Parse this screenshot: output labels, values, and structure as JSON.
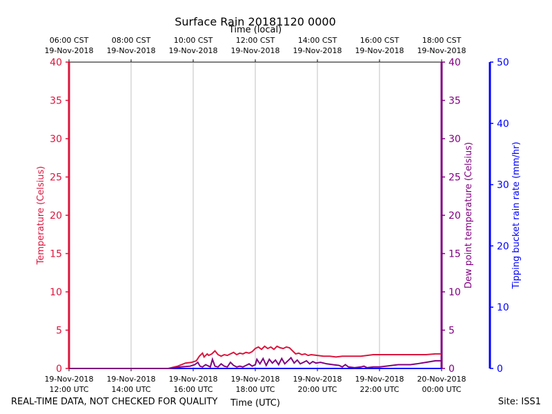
{
  "footer": {
    "disclaimer": "REAL-TIME DATA, NOT CHECKED FOR QUALITY",
    "site": "Site: ISS1"
  },
  "chart_data": {
    "type": "line",
    "title": "Surface Rain 20181120 0000",
    "top_axis_label": "Time (local)",
    "xlabel": "Time (UTC)",
    "xlim_hours": [
      12,
      24
    ],
    "top_ticks": [
      {
        "h": 12,
        "time": "06:00 CST",
        "date": "19-Nov-2018"
      },
      {
        "h": 14,
        "time": "08:00 CST",
        "date": "19-Nov-2018"
      },
      {
        "h": 16,
        "time": "10:00 CST",
        "date": "19-Nov-2018"
      },
      {
        "h": 18,
        "time": "12:00 CST",
        "date": "19-Nov-2018"
      },
      {
        "h": 20,
        "time": "14:00 CST",
        "date": "19-Nov-2018"
      },
      {
        "h": 22,
        "time": "16:00 CST",
        "date": "19-Nov-2018"
      },
      {
        "h": 24,
        "time": "18:00 CST",
        "date": "19-Nov-2018"
      }
    ],
    "bottom_ticks": [
      {
        "h": 12,
        "date": "19-Nov-2018",
        "time": "12:00 UTC"
      },
      {
        "h": 14,
        "date": "19-Nov-2018",
        "time": "14:00 UTC"
      },
      {
        "h": 16,
        "date": "19-Nov-2018",
        "time": "16:00 UTC"
      },
      {
        "h": 18,
        "date": "19-Nov-2018",
        "time": "18:00 UTC"
      },
      {
        "h": 20,
        "date": "19-Nov-2018",
        "time": "20:00 UTC"
      },
      {
        "h": 22,
        "date": "19-Nov-2018",
        "time": "22:00 UTC"
      },
      {
        "h": 24,
        "date": "20-Nov-2018",
        "time": "00:00 UTC"
      }
    ],
    "gridlines_hours": [
      14,
      16,
      18,
      20,
      22
    ],
    "axes": {
      "left": {
        "label": "Temperature (Celsius)",
        "ylim": [
          0,
          40
        ],
        "ticks": [
          0,
          5,
          10,
          15,
          20,
          25,
          30,
          35,
          40
        ],
        "color": "#dc143c"
      },
      "right1": {
        "label": "Dew point temperature (Celsius)",
        "ylim": [
          0,
          40
        ],
        "ticks": [
          0,
          5,
          10,
          15,
          20,
          25,
          30,
          35,
          40
        ],
        "color": "#800080"
      },
      "right2": {
        "label": "Tipping bucket rain rate (mm/hr)",
        "ylim": [
          0,
          50
        ],
        "ticks": [
          0,
          10,
          20,
          30,
          40,
          50
        ],
        "color": "#0000ff"
      }
    },
    "series": [
      {
        "name": "Temperature",
        "color": "#dc143c",
        "axis": "left",
        "x": [
          12.0,
          15.2,
          15.5,
          15.75,
          15.95,
          16.1,
          16.2,
          16.3,
          16.35,
          16.45,
          16.5,
          16.6,
          16.7,
          16.8,
          16.9,
          17.0,
          17.1,
          17.2,
          17.3,
          17.4,
          17.5,
          17.6,
          17.7,
          17.8,
          17.9,
          18.0,
          18.1,
          18.2,
          18.3,
          18.4,
          18.5,
          18.6,
          18.7,
          18.8,
          18.9,
          19.0,
          19.1,
          19.2,
          19.3,
          19.4,
          19.5,
          19.6,
          19.7,
          19.8,
          20.0,
          20.2,
          20.4,
          20.6,
          20.8,
          21.0,
          21.2,
          21.4,
          21.6,
          21.8,
          22.0,
          22.5,
          23.0,
          23.5,
          23.8,
          24.0
        ],
        "y": [
          0.0,
          0.0,
          0.3,
          0.7,
          0.8,
          1.0,
          1.6,
          2.0,
          1.5,
          1.9,
          1.7,
          1.9,
          2.3,
          1.8,
          1.6,
          1.8,
          1.7,
          1.9,
          2.1,
          1.8,
          2.0,
          1.9,
          2.1,
          2.0,
          2.2,
          2.6,
          2.8,
          2.5,
          2.9,
          2.6,
          2.8,
          2.5,
          2.9,
          2.7,
          2.6,
          2.8,
          2.7,
          2.3,
          1.9,
          2.0,
          1.8,
          1.9,
          1.7,
          1.8,
          1.7,
          1.6,
          1.6,
          1.5,
          1.6,
          1.6,
          1.6,
          1.6,
          1.7,
          1.8,
          1.8,
          1.8,
          1.8,
          1.8,
          1.9,
          1.9
        ]
      },
      {
        "name": "Dew point",
        "color": "#800080",
        "axis": "right1",
        "x": [
          12.0,
          15.2,
          15.6,
          15.9,
          16.05,
          16.15,
          16.22,
          16.3,
          16.4,
          16.5,
          16.55,
          16.62,
          16.7,
          16.8,
          16.9,
          17.0,
          17.1,
          17.2,
          17.3,
          17.4,
          17.5,
          17.6,
          17.7,
          17.8,
          17.9,
          18.0,
          18.05,
          18.15,
          18.25,
          18.35,
          18.45,
          18.55,
          18.65,
          18.75,
          18.85,
          18.95,
          19.05,
          19.15,
          19.25,
          19.35,
          19.45,
          19.55,
          19.65,
          19.75,
          19.85,
          19.95,
          20.1,
          20.3,
          20.5,
          20.7,
          20.8,
          20.9,
          21.0,
          21.2,
          21.4,
          21.5,
          21.6,
          21.8,
          22.0,
          22.2,
          22.4,
          22.6,
          22.8,
          23.0,
          23.2,
          23.5,
          23.8,
          24.0
        ],
        "y": [
          0.0,
          0.0,
          0.2,
          0.3,
          0.5,
          0.8,
          0.3,
          0.2,
          0.5,
          0.3,
          0.2,
          1.2,
          0.3,
          0.2,
          0.6,
          0.3,
          0.2,
          0.8,
          0.4,
          0.2,
          0.3,
          0.2,
          0.4,
          0.6,
          0.3,
          0.5,
          1.2,
          0.6,
          1.3,
          0.4,
          1.2,
          0.7,
          1.1,
          0.5,
          1.3,
          0.6,
          1.0,
          1.4,
          0.7,
          1.1,
          0.6,
          0.8,
          1.0,
          0.6,
          0.9,
          0.7,
          0.8,
          0.6,
          0.5,
          0.4,
          0.2,
          0.5,
          0.2,
          0.1,
          0.2,
          0.3,
          0.1,
          0.2,
          0.2,
          0.3,
          0.4,
          0.5,
          0.5,
          0.5,
          0.6,
          0.8,
          1.0,
          1.0
        ]
      },
      {
        "name": "Rain rate",
        "color": "#0000ff",
        "axis": "right2",
        "x": [
          12,
          24
        ],
        "y": [
          0,
          0
        ]
      }
    ]
  }
}
